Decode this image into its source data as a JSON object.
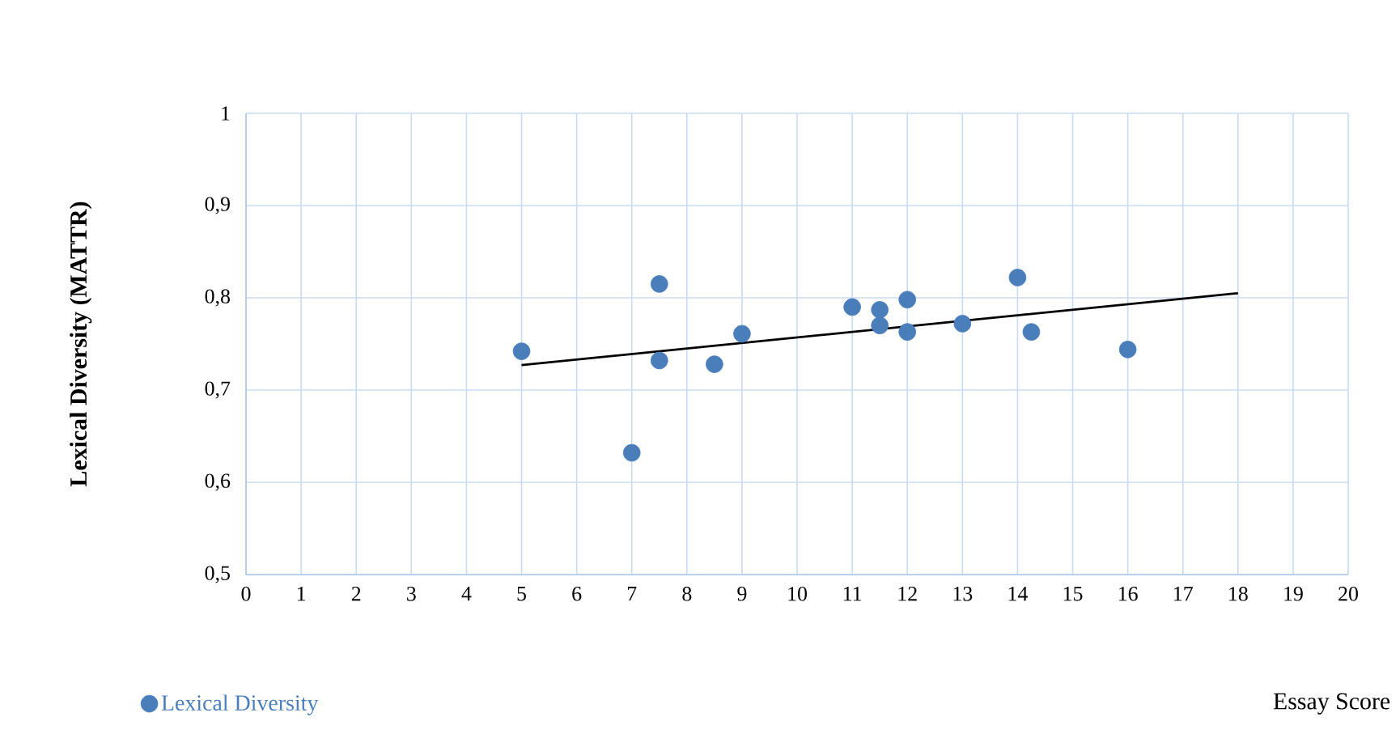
{
  "chart_data": {
    "type": "scatter",
    "xlabel": "Essay Score",
    "ylabel": "Lexical Diversity (MATTR)",
    "series": [
      {
        "name": "Lexical Diversity",
        "color": "#4a7ebb",
        "marker": "circle",
        "x": [
          5,
          7.5,
          7.5,
          7,
          8.5,
          9,
          11,
          11.5,
          11.5,
          12,
          12,
          13,
          14,
          14.25,
          16
        ],
        "values": [
          0.742,
          0.815,
          0.732,
          0.632,
          0.728,
          0.761,
          0.79,
          0.787,
          0.77,
          0.798,
          0.763,
          0.772,
          0.822,
          0.763,
          0.744
        ]
      },
      {
        "color": "#000000",
        "type": "line",
        "marker": "none",
        "x": [
          5,
          18
        ],
        "values": [
          0.727,
          0.805
        ]
      }
    ],
    "xlim": [
      0,
      20
    ],
    "xticks": [
      0,
      1,
      2,
      3,
      4,
      5,
      6,
      7,
      8,
      9,
      10,
      11,
      12,
      13,
      14,
      15,
      16,
      17,
      18,
      19,
      20
    ],
    "ylim": [
      0.5,
      1
    ],
    "yticks": [
      {
        "value": 0.5,
        "label": "0,5"
      },
      {
        "value": 0.6,
        "label": "0,6"
      },
      {
        "value": 0.7,
        "label": "0,7"
      },
      {
        "value": 0.8,
        "label": "0,8"
      },
      {
        "value": 0.9,
        "label": "0,9"
      },
      1
    ],
    "grid": true,
    "legend": "bottom left"
  }
}
